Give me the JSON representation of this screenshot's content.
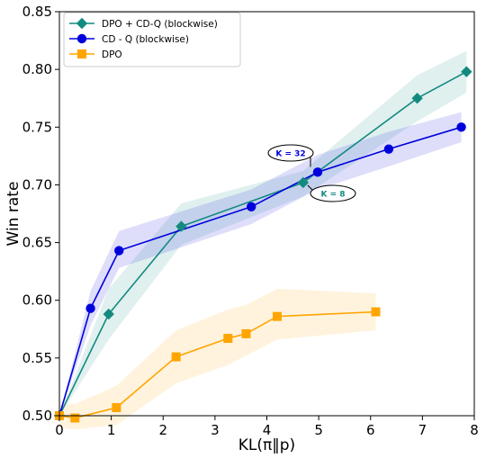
{
  "chart_data": {
    "type": "line",
    "title": "",
    "xlabel": "KL(π‖p)",
    "ylabel": "Win rate",
    "xlim": [
      0,
      8
    ],
    "ylim": [
      0.5,
      0.85
    ],
    "xticks": [
      "0",
      "1",
      "2",
      "3",
      "4",
      "5",
      "6",
      "7",
      "8"
    ],
    "yticks": [
      "0.50",
      "0.55",
      "0.60",
      "0.65",
      "0.70",
      "0.75",
      "0.80",
      "0.85"
    ],
    "grid": false,
    "legend_position": "top-left",
    "series": [
      {
        "name": "DPO + CD-Q (blockwise)",
        "color": "#138a80",
        "marker": "diamond",
        "x": [
          0.0,
          0.95,
          2.35,
          4.7,
          6.9,
          7.85
        ],
        "y": [
          0.5,
          0.588,
          0.664,
          0.702,
          0.775,
          0.798
        ],
        "band_lower": [
          0.5,
          0.566,
          0.648,
          0.69,
          0.755,
          0.78
        ],
        "band_upper": [
          0.5,
          0.61,
          0.684,
          0.712,
          0.795,
          0.816
        ]
      },
      {
        "name": "CD - Q (blockwise)",
        "color": "#0000dd",
        "marker": "circle",
        "x": [
          0.0,
          0.6,
          1.15,
          3.7,
          4.98,
          6.35,
          7.75
        ],
        "y": [
          0.5,
          0.593,
          0.643,
          0.681,
          0.711,
          0.731,
          0.75
        ],
        "band_lower": [
          0.5,
          0.578,
          0.628,
          0.666,
          0.696,
          0.716,
          0.737
        ],
        "band_upper": [
          0.5,
          0.608,
          0.66,
          0.696,
          0.726,
          0.746,
          0.763
        ]
      },
      {
        "name": "DPO",
        "color": "#ffa500",
        "marker": "square",
        "x": [
          0.0,
          0.3,
          1.1,
          2.25,
          3.25,
          3.6,
          4.2,
          6.1
        ],
        "y": [
          0.5,
          0.498,
          0.507,
          0.551,
          0.567,
          0.571,
          0.586,
          0.59
        ],
        "band_lower": [
          0.49,
          0.488,
          0.492,
          0.528,
          0.544,
          0.552,
          0.566,
          0.574
        ],
        "band_upper": [
          0.51,
          0.51,
          0.526,
          0.574,
          0.592,
          0.596,
          0.61,
          0.606
        ]
      }
    ],
    "annotations": [
      {
        "text": "K = 32",
        "point": [
          4.98,
          0.711
        ],
        "color": "#0000dd"
      },
      {
        "text": "K = 8",
        "point": [
          4.7,
          0.702
        ],
        "color": "#138a80"
      }
    ]
  }
}
